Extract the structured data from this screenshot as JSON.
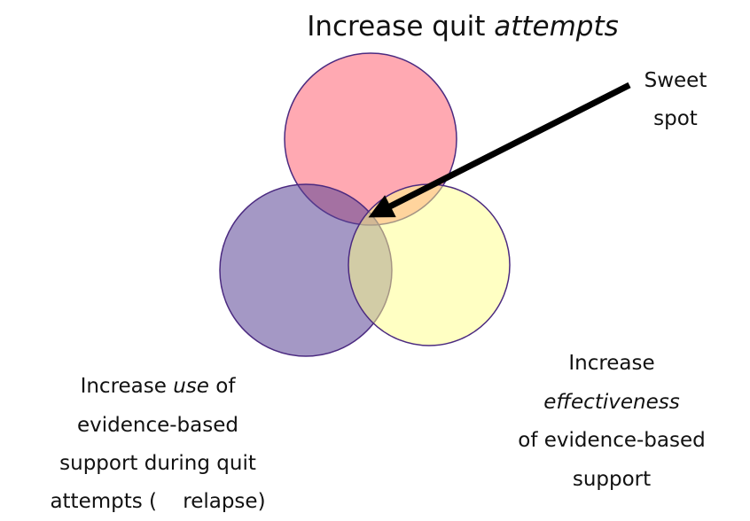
{
  "title": {
    "text": "Increase quit",
    "emphasis": "attempts"
  },
  "callout": {
    "lines": [
      "Sweet",
      "spot"
    ]
  },
  "left_label": {
    "before": "Increase",
    "emphasis": "use",
    "after": "of",
    "lines": [
      "evidence-based",
      "support during quit",
      "attempts (    relapse)"
    ]
  },
  "right_label": {
    "first": "Increase",
    "emphasis": "effectiveness",
    "lines": [
      "of evidence-based",
      "support"
    ]
  }
}
